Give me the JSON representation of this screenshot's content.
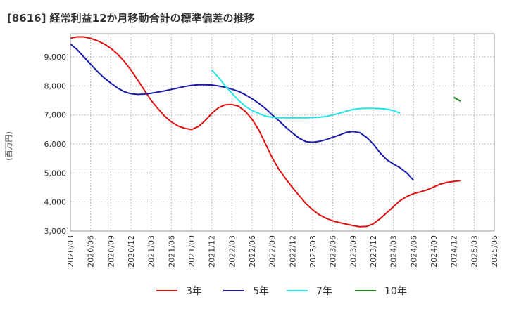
{
  "chart_data": {
    "type": "line",
    "title": "[8616]  経常利益12か月移動合計の標準偏差の推移",
    "ylabel": "(百万円)",
    "xlabel": "",
    "ylim": [
      3000,
      9800
    ],
    "y_ticks": [
      "3,000",
      "4,000",
      "5,000",
      "6,000",
      "7,000",
      "8,000",
      "9,000"
    ],
    "y_tick_values": [
      3000,
      4000,
      5000,
      6000,
      7000,
      8000,
      9000
    ],
    "x_ticks": [
      "2020/03",
      "2020/06",
      "2020/09",
      "2020/12",
      "2021/03",
      "2021/06",
      "2021/09",
      "2021/12",
      "2022/03",
      "2022/06",
      "2022/09",
      "2022/12",
      "2023/03",
      "2023/06",
      "2023/09",
      "2023/12",
      "2024/03",
      "2024/06",
      "2024/09",
      "2024/12",
      "2025/03",
      "2025/06"
    ],
    "grid": true,
    "legend_position": "bottom",
    "series": [
      {
        "name": "3年",
        "color": "#dd1111",
        "start": "2020/03",
        "values": [
          9650,
          9690,
          9690,
          9640,
          9560,
          9450,
          9300,
          9100,
          8850,
          8550,
          8200,
          7850,
          7500,
          7220,
          6960,
          6760,
          6620,
          6540,
          6500,
          6600,
          6800,
          7050,
          7250,
          7350,
          7360,
          7300,
          7120,
          6850,
          6480,
          6000,
          5520,
          5120,
          4800,
          4500,
          4220,
          3950,
          3730,
          3560,
          3440,
          3350,
          3290,
          3240,
          3190,
          3150,
          3160,
          3250,
          3420,
          3630,
          3840,
          4050,
          4190,
          4290,
          4350,
          4420,
          4520,
          4620,
          4680,
          4710,
          4740
        ]
      },
      {
        "name": "5年",
        "color": "#1a1aaa",
        "start": "2020/03",
        "values": [
          9450,
          9250,
          9000,
          8750,
          8500,
          8280,
          8100,
          7930,
          7800,
          7730,
          7710,
          7720,
          7750,
          7790,
          7830,
          7880,
          7930,
          7980,
          8020,
          8040,
          8040,
          8030,
          8000,
          7950,
          7890,
          7810,
          7700,
          7560,
          7400,
          7220,
          7000,
          6800,
          6580,
          6380,
          6200,
          6080,
          6060,
          6090,
          6150,
          6230,
          6310,
          6400,
          6430,
          6390,
          6230,
          6000,
          5700,
          5460,
          5310,
          5180,
          5000,
          4750
        ]
      },
      {
        "name": "7年",
        "color": "#22e5e5",
        "start": "2021/12",
        "values": [
          8550,
          8300,
          8000,
          7750,
          7500,
          7300,
          7150,
          7050,
          6960,
          6920,
          6900,
          6900,
          6900,
          6900,
          6900,
          6910,
          6920,
          6950,
          7000,
          7060,
          7130,
          7190,
          7220,
          7230,
          7230,
          7220,
          7200,
          7150,
          7060
        ]
      },
      {
        "name": "10年",
        "color": "#228822",
        "start": "2024/12",
        "values": [
          7610,
          7470
        ]
      }
    ]
  }
}
